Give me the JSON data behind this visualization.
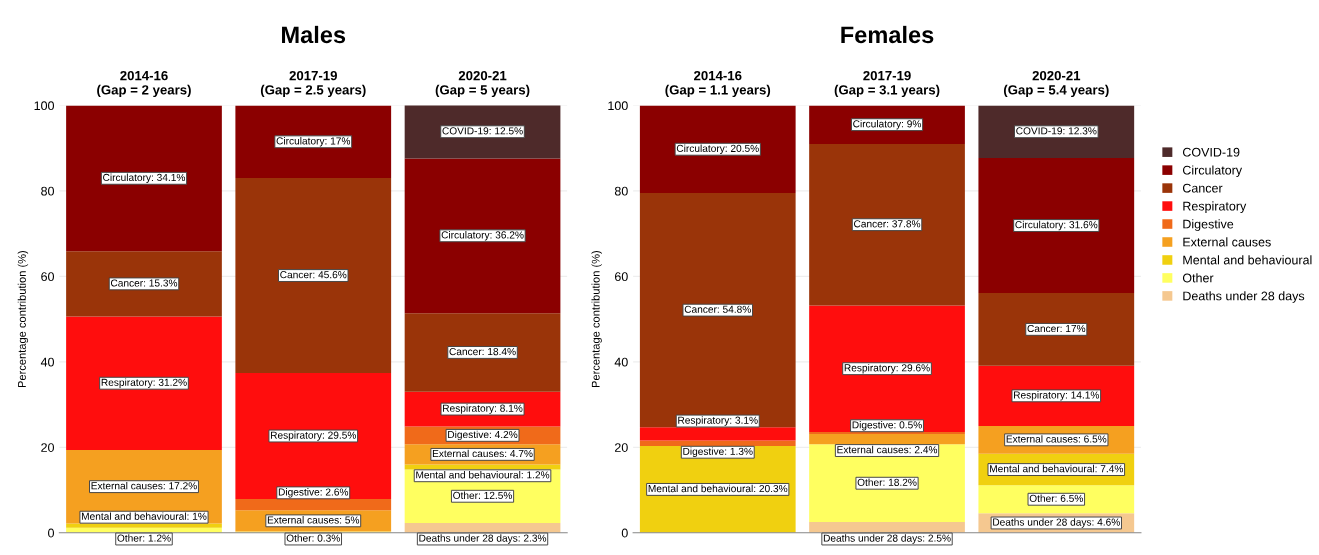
{
  "chart_data": [
    {
      "type": "bar",
      "title": "Males",
      "ylabel": "Percentage contribution (%)",
      "stacked": true,
      "categories": [
        "2014-16\n(Gap = 2 years)",
        "2017-19\n(Gap = 2.5 years)",
        "2020-21\n(Gap = 5 years)"
      ],
      "ylim": [
        0,
        100
      ],
      "yticks": [
        0,
        20,
        40,
        60,
        80,
        100
      ],
      "grid": "y",
      "series": [
        {
          "color": "#f5c890",
          "values": [
            null,
            null,
            2.3
          ],
          "value_labels": [
            null,
            null,
            "Deaths under 28 days: 2.3%"
          ]
        },
        {
          "color": "#ffff60",
          "values": [
            1.2,
            0.3,
            12.5
          ],
          "value_labels": [
            "Other: 1.2%",
            "Other: 0.3%",
            "Other: 12.5%"
          ]
        },
        {
          "color": "#f0d010",
          "values": [
            1,
            null,
            1.2
          ],
          "value_labels": [
            "Mental and behavioural: 1%",
            null,
            "Mental and behavioural: 1.2%"
          ]
        },
        {
          "color": "#f5a020",
          "values": [
            17.2,
            5,
            4.7
          ],
          "value_labels": [
            "External causes: 17.2%",
            "External causes: 5%",
            "External causes: 4.7%"
          ]
        },
        {
          "color": "#f06a1a",
          "values": [
            null,
            2.6,
            4.2
          ],
          "value_labels": [
            null,
            "Digestive: 2.6%",
            "Digestive: 4.2%"
          ]
        },
        {
          "color": "#ff0d0d",
          "values": [
            31.2,
            29.5,
            8.1
          ],
          "value_labels": [
            "Respiratory: 31.2%",
            "Respiratory: 29.5%",
            "Respiratory: 8.1%"
          ]
        },
        {
          "color": "#9a3409",
          "values": [
            15.3,
            45.6,
            18.4
          ],
          "value_labels": [
            "Cancer: 15.3%",
            "Cancer: 45.6%",
            "Cancer: 18.4%"
          ]
        },
        {
          "color": "#8b0000",
          "values": [
            34.1,
            17,
            36.2
          ],
          "value_labels": [
            "Circulatory: 34.1%",
            "Circulatory: 17%",
            "Circulatory: 36.2%"
          ]
        },
        {
          "color": "#4e2a2a",
          "values": [
            null,
            null,
            12.5
          ],
          "value_labels": [
            null,
            null,
            "COVID-19: 12.5%"
          ]
        }
      ]
    },
    {
      "type": "bar",
      "title": "Females",
      "ylabel": "Percentage contribution (%)",
      "stacked": true,
      "categories": [
        "2014-16\n(Gap = 1.1 years)",
        "2017-19\n(Gap = 3.1 years)",
        "2020-21\n(Gap = 5.4 years)"
      ],
      "ylim": [
        0,
        100
      ],
      "yticks": [
        0,
        20,
        40,
        60,
        80,
        100
      ],
      "grid": "y",
      "legend": "right",
      "series": [
        {
          "name": "Deaths under 28 days",
          "color": "#f5c890",
          "values": [
            null,
            2.5,
            4.6
          ],
          "value_labels": [
            null,
            "Deaths under 28 days: 2.5%",
            "Deaths under 28 days: 4.6%"
          ]
        },
        {
          "name": "Other",
          "color": "#ffff60",
          "values": [
            null,
            18.2,
            6.5
          ],
          "value_labels": [
            null,
            "Other: 18.2%",
            "Other: 6.5%"
          ]
        },
        {
          "name": "Mental and behavioural",
          "color": "#f0d010",
          "values": [
            20.3,
            null,
            7.4
          ],
          "value_labels": [
            "Mental and behavioural: 20.3%",
            null,
            "Mental and behavioural: 7.4%"
          ]
        },
        {
          "name": "External causes",
          "color": "#f5a020",
          "values": [
            null,
            2.4,
            6.5
          ],
          "value_labels": [
            null,
            "External causes: 2.4%",
            "External causes: 6.5%"
          ]
        },
        {
          "name": "Digestive",
          "color": "#f06a1a",
          "values": [
            1.3,
            0.5,
            null
          ],
          "value_labels": [
            "Digestive: 1.3%",
            "Digestive: 0.5%",
            null
          ]
        },
        {
          "name": "Respiratory",
          "color": "#ff0d0d",
          "values": [
            3.1,
            29.6,
            14.1
          ],
          "value_labels": [
            "Respiratory: 3.1%",
            "Respiratory: 29.6%",
            "Respiratory: 14.1%"
          ]
        },
        {
          "name": "Cancer",
          "color": "#9a3409",
          "values": [
            54.8,
            37.8,
            17
          ],
          "value_labels": [
            "Cancer: 54.8%",
            "Cancer: 37.8%",
            "Cancer: 17%"
          ]
        },
        {
          "name": "Circulatory",
          "color": "#8b0000",
          "values": [
            20.5,
            9,
            31.6
          ],
          "value_labels": [
            "Circulatory: 20.5%",
            "Circulatory: 9%",
            "Circulatory: 31.6%"
          ]
        },
        {
          "name": "COVID-19",
          "color": "#4e2a2a",
          "values": [
            null,
            null,
            12.3
          ],
          "value_labels": [
            null,
            null,
            "COVID-19: 12.3%"
          ]
        }
      ]
    }
  ]
}
